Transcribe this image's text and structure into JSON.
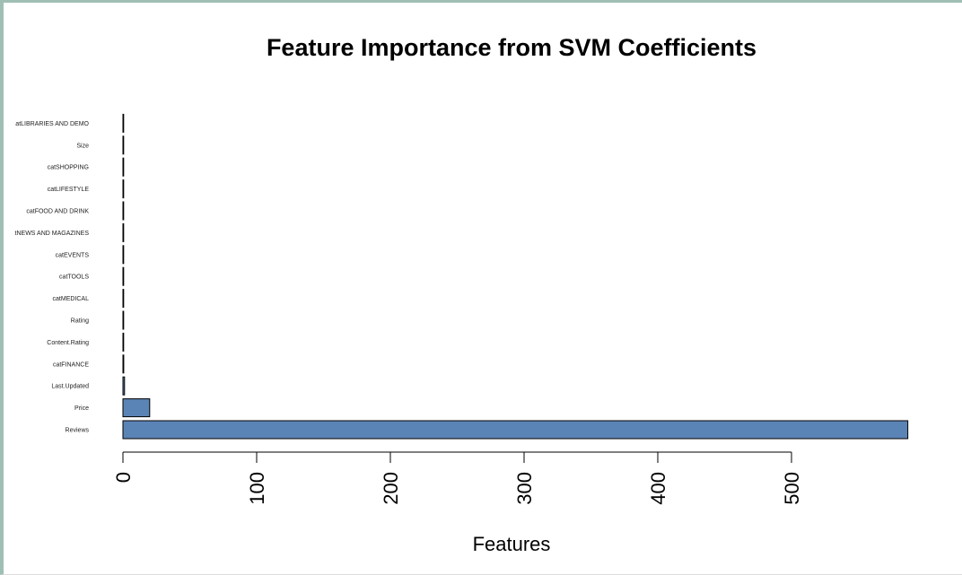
{
  "chart_data": {
    "type": "bar",
    "orientation": "horizontal",
    "title": "Feature Importance from SVM Coefficients",
    "xlabel": "Features",
    "ylabel": "",
    "xlim": [
      0,
      588
    ],
    "xticks": [
      "0",
      "100",
      "200",
      "300",
      "400",
      "500"
    ],
    "xtick_values": [
      0,
      100,
      200,
      300,
      400,
      500
    ],
    "grid": false,
    "bar_color": "#5b84b6",
    "categories": [
      "Reviews",
      "Price",
      "Last.Updated",
      "catFINANCE",
      "Content.Rating",
      "Rating",
      "catMEDICAL",
      "catTOOLS",
      "catEVENTS",
      "tNEWS AND MAGAZINES",
      "catFOOD AND DRINK",
      "catLIFESTYLE",
      "catSHOPPING",
      "Size",
      "atLIBRARIES AND DEMO"
    ],
    "values": [
      587,
      20,
      1.2,
      0.6,
      0.5,
      0.45,
      0.4,
      0.35,
      0.3,
      0.28,
      0.25,
      0.22,
      0.2,
      0.18,
      0.15
    ]
  }
}
